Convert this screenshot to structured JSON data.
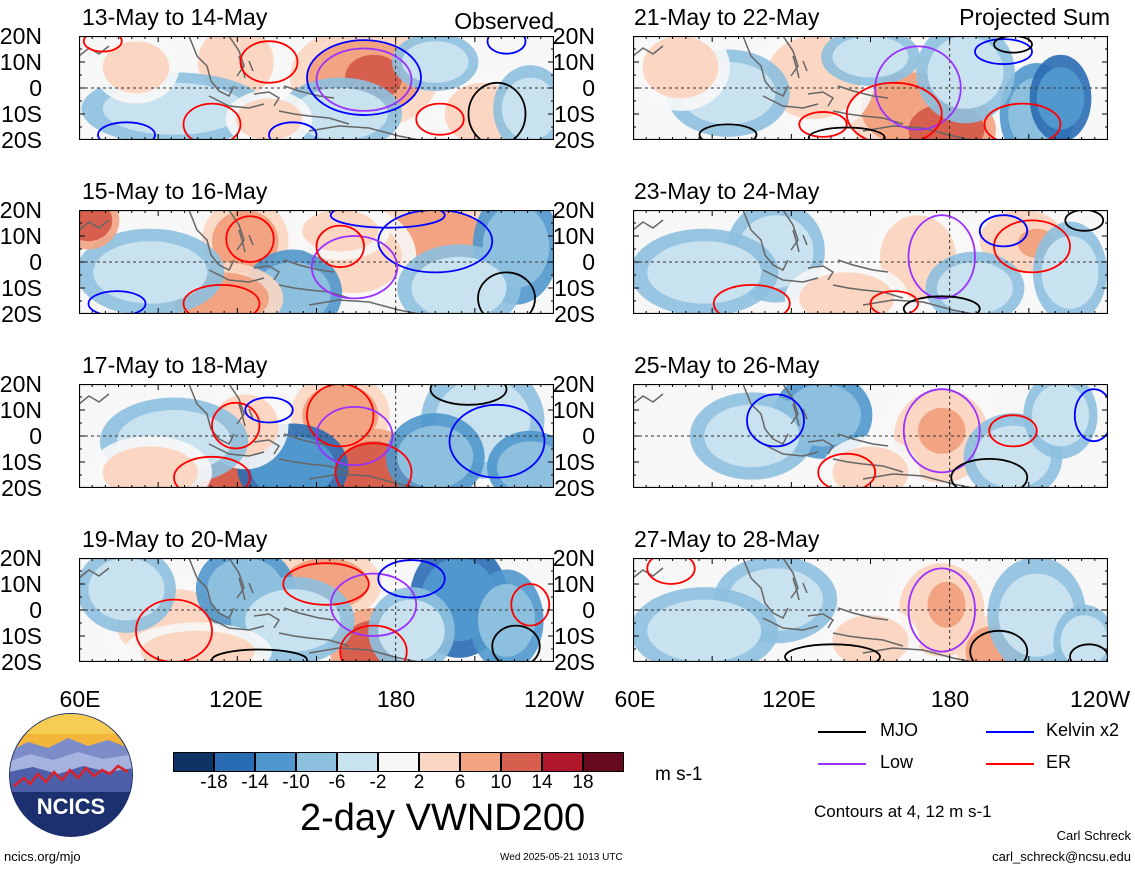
{
  "column_tags": {
    "left": "Observed",
    "right": "Projected Sum"
  },
  "panels": [
    {
      "title": "13-May to 14-May",
      "col": 0,
      "row": 0
    },
    {
      "title": "15-May to 16-May",
      "col": 0,
      "row": 1
    },
    {
      "title": "17-May to 18-May",
      "col": 0,
      "row": 2
    },
    {
      "title": "19-May to 20-May",
      "col": 0,
      "row": 3
    },
    {
      "title": "21-May to 22-May",
      "col": 1,
      "row": 0
    },
    {
      "title": "23-May to 24-May",
      "col": 1,
      "row": 1
    },
    {
      "title": "25-May to 26-May",
      "col": 1,
      "row": 2
    },
    {
      "title": "27-May to 28-May",
      "col": 1,
      "row": 3
    }
  ],
  "lat_labels": [
    "20N",
    "10N",
    "0",
    "10S",
    "20S"
  ],
  "lon_labels": [
    "60E",
    "120E",
    "180",
    "120W"
  ],
  "colorbar": {
    "labels": [
      "-18",
      "-14",
      "-10",
      "-6",
      "-2",
      "2",
      "6",
      "10",
      "14",
      "18"
    ],
    "colors": [
      "#0d3464",
      "#2a6cb3",
      "#4f97cc",
      "#8dc0df",
      "#c9e2f0",
      "#f7f7f7",
      "#fbd6c2",
      "#f2a482",
      "#d6604d",
      "#b2182b",
      "#670a1f"
    ],
    "units": "m s-1"
  },
  "legend": [
    {
      "label": "MJO",
      "color": "#000000"
    },
    {
      "label": "Kelvin x2",
      "color": "#0000ff"
    },
    {
      "label": "Low",
      "color": "#9b30ff"
    },
    {
      "label": "ER",
      "color": "#ff0000"
    }
  ],
  "main_title": "2-day VWND200",
  "contours_note": "Contours at 4, 12 m s-1",
  "logo_text": "NCICS",
  "footer": {
    "url": "ncics.org/mjo",
    "timestamp": "Wed 2025-05-21 1013 UTC",
    "author": "Carl Schreck",
    "email": "carl_schreck@ncsu.edu"
  }
}
